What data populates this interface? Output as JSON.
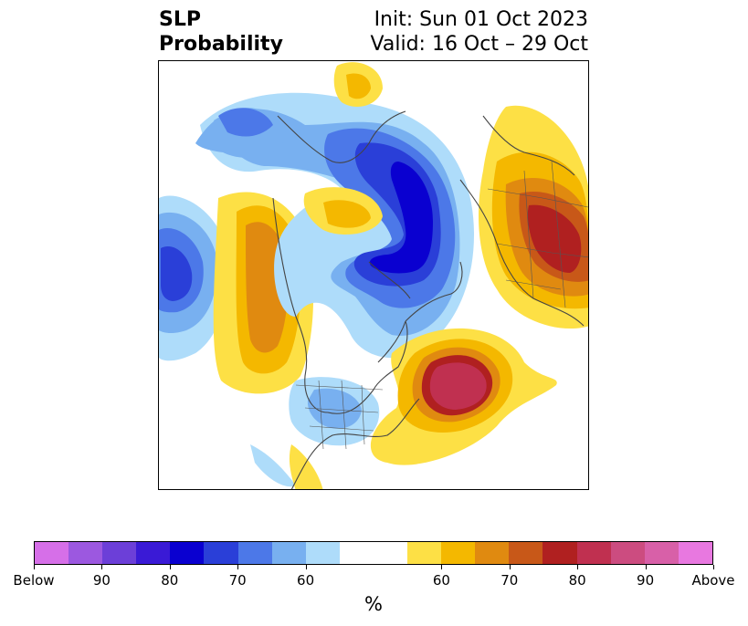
{
  "title": {
    "left_line1": "SLP",
    "left_line2": "Probability",
    "right_line1": "Init: Sun 01 Oct 2023",
    "right_line2": "Valid: 16 Oct – 29 Oct"
  },
  "colorbar": {
    "unit": "%",
    "colors": [
      "#d66fe8",
      "#9c58e0",
      "#6c3fd8",
      "#3a1ad6",
      "#0a00d0",
      "#2a3fd8",
      "#4c78e8",
      "#78b0f0",
      "#aedcfa",
      "#ffffff",
      "#ffffff",
      "#fde045",
      "#f4b800",
      "#e08a10",
      "#c85818",
      "#b02020",
      "#c03050",
      "#cc4c80",
      "#d860a8",
      "#e878e0"
    ],
    "labels": [
      "Below",
      "90",
      "80",
      "70",
      "60",
      "60",
      "70",
      "80",
      "90",
      "Above"
    ]
  },
  "map": {
    "projection": "north-polar-stereographic",
    "colors": {
      "light_blue": "#aedcfa",
      "mid_blue": "#78b0f0",
      "blue": "#4c78e8",
      "deep_blue": "#2a3fd8",
      "navy": "#0a00d0",
      "yellow": "#fde045",
      "gold": "#f4b800",
      "orange": "#e08a10",
      "burnt": "#c85818",
      "red": "#b02020",
      "crimson": "#c03050",
      "coast": "#444444"
    }
  }
}
